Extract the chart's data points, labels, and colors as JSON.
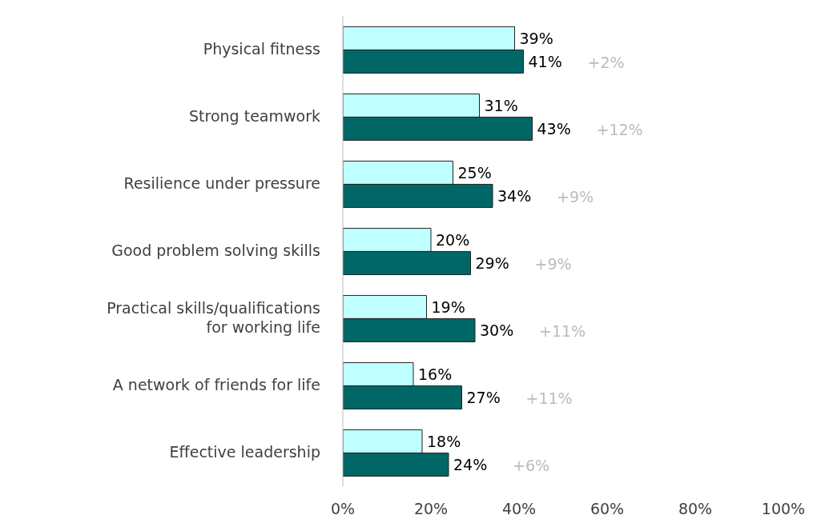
{
  "chart_data": {
    "type": "bar",
    "orientation": "horizontal",
    "categories": [
      "Physical fitness",
      "Strong teamwork",
      "Resilience under pressure",
      "Good problem solving skills",
      "Practical skills/qualifications for working life",
      "A network of friends for life",
      "Effective leadership"
    ],
    "series": [
      {
        "color": "#c0ffff",
        "values": [
          39,
          31,
          25,
          20,
          19,
          16,
          18
        ],
        "value_labels": [
          "39%",
          "31%",
          "25%",
          "20%",
          "19%",
          "16%",
          "18%"
        ]
      },
      {
        "color": "#006666",
        "values": [
          41,
          43,
          34,
          29,
          30,
          27,
          24
        ],
        "value_labels": [
          "41%",
          "43%",
          "34%",
          "29%",
          "30%",
          "27%",
          "24%"
        ]
      }
    ],
    "xlim": [
      0,
      100
    ],
    "xticks": [
      {
        "value": 0,
        "label": "0%"
      },
      {
        "value": 20,
        "label": "20%"
      },
      {
        "value": 40,
        "label": "40%"
      },
      {
        "value": 60,
        "label": "60%"
      },
      {
        "value": 80,
        "label": "80%"
      },
      {
        "value": 100,
        "label": "100%"
      }
    ],
    "annotations": [
      "+2%",
      "+12%",
      "+9%",
      "+9%",
      "+11%",
      "+11%",
      "+6%"
    ],
    "grid": false,
    "legend": false
  }
}
